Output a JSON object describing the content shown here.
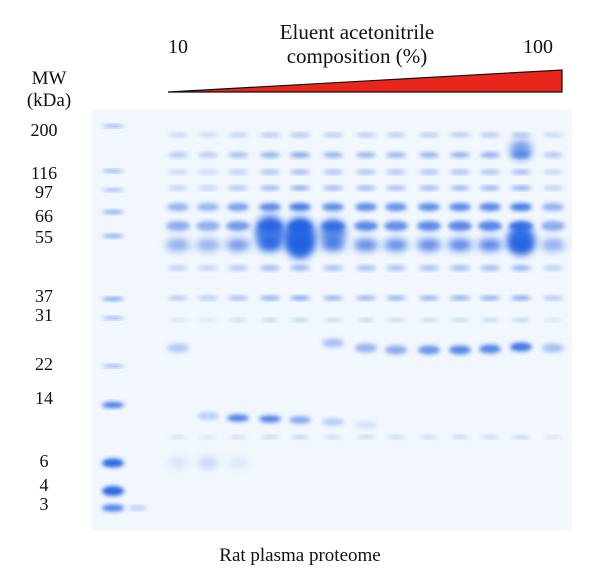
{
  "figure": {
    "gradient_title_line1": "Eluent acetonitrile",
    "gradient_title_line2": "composition (%)",
    "gradient_low": "10",
    "gradient_high": "100",
    "gradient_color": "#e8261c",
    "mw_title_line1": "MW",
    "mw_title_line2": "(kDa)",
    "mw_markers": [
      "200",
      "116",
      "97",
      "66",
      "55",
      "37",
      "31",
      "22",
      "14",
      "6",
      "4",
      "3"
    ],
    "caption": "Rat plasma proteome",
    "stain_color": "#1f5fe0"
  }
}
